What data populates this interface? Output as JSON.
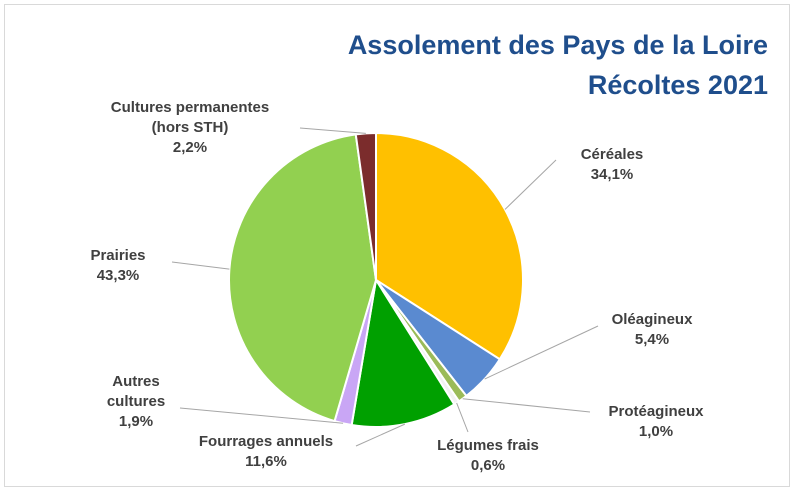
{
  "chart_data": {
    "type": "pie",
    "title": "Assolement des Pays de la Loire",
    "subtitle": "Récoltes 2021",
    "categories": [
      "Céréales",
      "Oléagineux",
      "Protéagineux",
      "Légumes frais",
      "Fourrages annuels",
      "Autres cultures",
      "Prairies",
      "Cultures permanentes (hors STH)"
    ],
    "values": [
      34.1,
      5.4,
      1.0,
      0.6,
      11.6,
      1.9,
      43.3,
      2.2
    ],
    "value_labels": [
      "34,1%",
      "5,4%",
      "1,0%",
      "0,6%",
      "11,6%",
      "1,9%",
      "43,3%",
      "2,2%"
    ],
    "colors": [
      "#ffc000",
      "#5a8ad0",
      "#9bbb59",
      "#f2f2f2",
      "#00a000",
      "#c9a6f5",
      "#92d050",
      "#7b2c2c"
    ]
  }
}
